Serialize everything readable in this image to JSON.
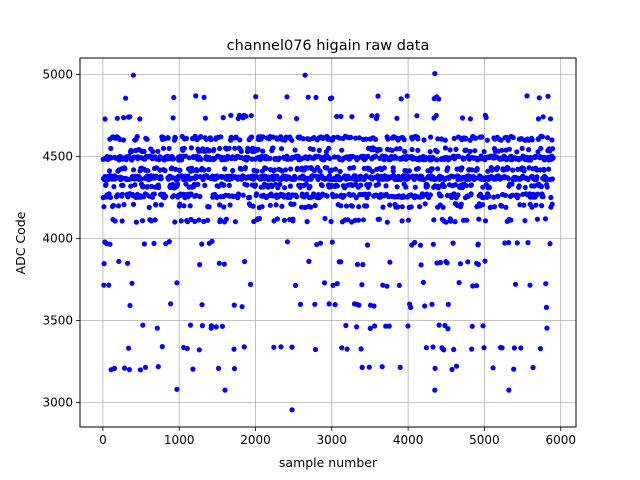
{
  "chart_data": {
    "type": "scatter",
    "title": "channel076 higain raw data",
    "xlabel": "sample number",
    "ylabel": "ADC Code",
    "xlim": [
      -300,
      6200
    ],
    "ylim": [
      2850,
      5100
    ],
    "xticks": [
      0,
      1000,
      2000,
      3000,
      4000,
      5000,
      6000
    ],
    "yticks": [
      3000,
      3500,
      4000,
      4500,
      5000
    ],
    "grid": true,
    "marker_color": "#0000ff",
    "n_samples": 5900,
    "levels": [
      {
        "value": 4370,
        "weight": 24
      },
      {
        "value": 4490,
        "weight": 20
      },
      {
        "value": 4260,
        "weight": 14
      },
      {
        "value": 4610,
        "weight": 10
      },
      {
        "value": 4420,
        "weight": 8
      },
      {
        "value": 4320,
        "weight": 8
      },
      {
        "value": 4540,
        "weight": 6
      },
      {
        "value": 4200,
        "weight": 5
      },
      {
        "value": 4110,
        "weight": 3
      },
      {
        "value": 4740,
        "weight": 2
      },
      {
        "value": 4860,
        "weight": 1.2
      },
      {
        "value": 3970,
        "weight": 1.5
      },
      {
        "value": 3850,
        "weight": 1
      },
      {
        "value": 3720,
        "weight": 1
      },
      {
        "value": 3590,
        "weight": 1.2
      },
      {
        "value": 3460,
        "weight": 1.2
      },
      {
        "value": 3330,
        "weight": 1.5
      },
      {
        "value": 3210,
        "weight": 1.2
      }
    ],
    "outliers": [
      {
        "x": 400,
        "y": 4995
      },
      {
        "x": 2650,
        "y": 4995
      },
      {
        "x": 4350,
        "y": 5005
      },
      {
        "x": 2480,
        "y": 2955
      },
      {
        "x": 970,
        "y": 3080
      },
      {
        "x": 1600,
        "y": 3075
      },
      {
        "x": 4350,
        "y": 3075
      },
      {
        "x": 5320,
        "y": 3075
      }
    ]
  }
}
